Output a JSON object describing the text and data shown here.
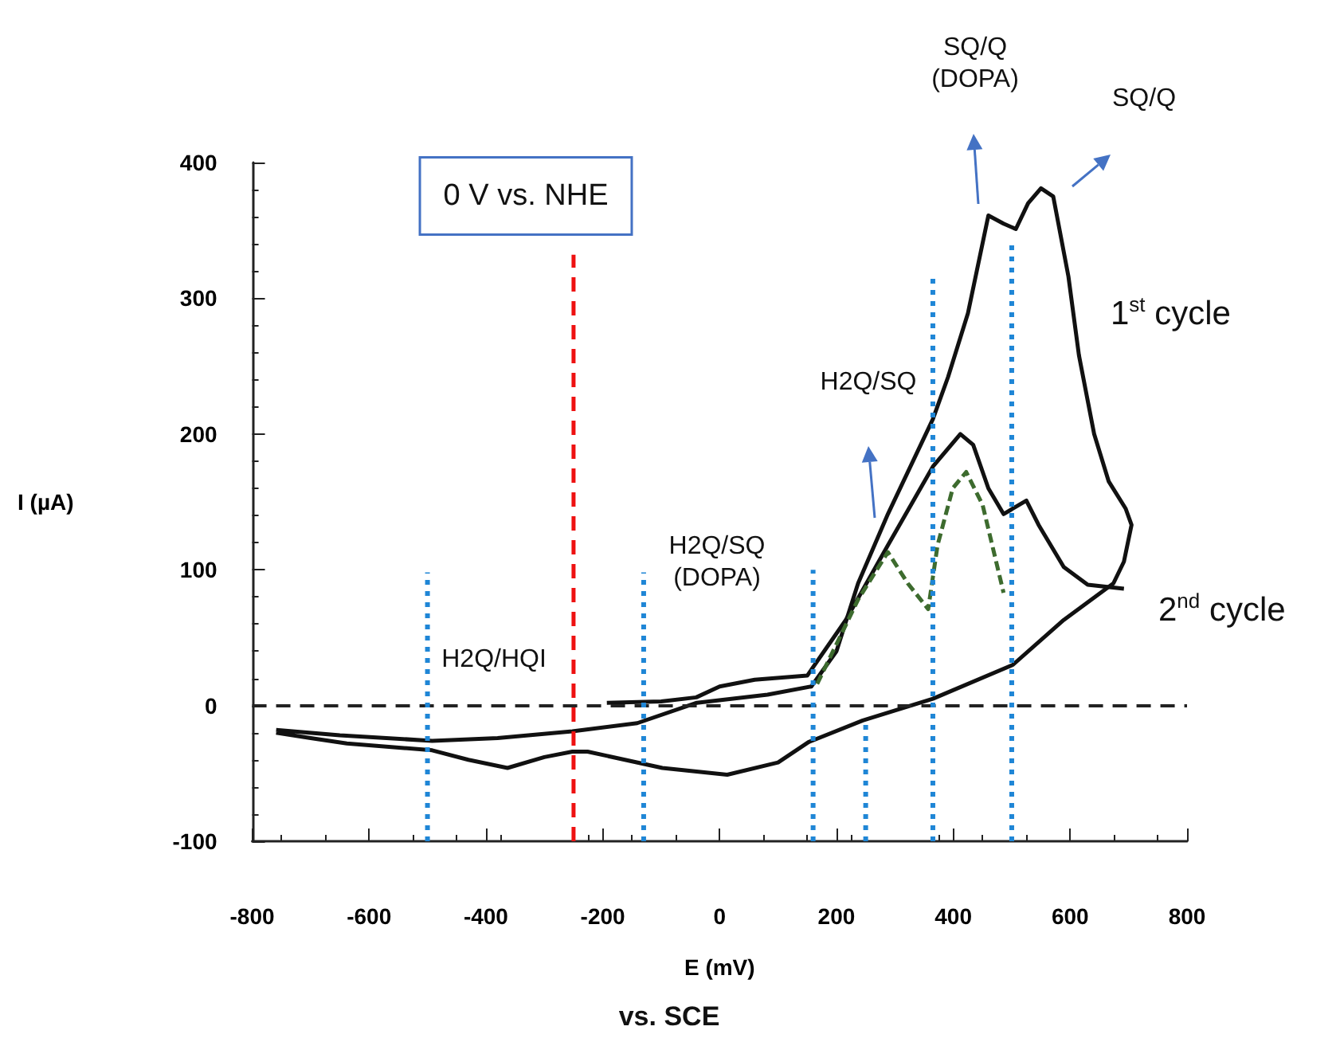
{
  "chart_data": {
    "type": "line",
    "xlabel": "E (mV)",
    "ylabel": "I (µA)",
    "xlim": [
      -800,
      800
    ],
    "ylim": [
      -100,
      400
    ],
    "xticks": [
      -800,
      -600,
      -400,
      -200,
      0,
      200,
      400,
      600,
      800
    ],
    "yticks": [
      -100,
      0,
      100,
      200,
      300,
      400
    ],
    "marker": "none",
    "series": [
      {
        "color": "#111111",
        "line_style": "solid",
        "x": [
          -759,
          -650,
          -492,
          -380,
          -252,
          -141,
          -39,
          82,
          157,
          200,
          237,
          288,
          365,
          391,
          425,
          460,
          486,
          507,
          528,
          550,
          571,
          597,
          615,
          641,
          666,
          695,
          705,
          692,
          674,
          589,
          502,
          365,
          245,
          152,
          100,
          13,
          -98,
          -226,
          -252,
          -300,
          -363,
          -430,
          -492,
          -638,
          -700,
          -759
        ],
        "values": [
          -18,
          -22,
          -26,
          -24,
          -19,
          -13,
          2,
          8,
          14,
          40,
          90,
          141,
          211,
          242,
          289,
          361,
          355,
          351,
          370,
          381,
          375,
          316,
          258,
          200,
          165,
          145,
          133,
          106,
          90,
          63,
          30,
          5,
          -11,
          -27,
          -42,
          -51,
          -46,
          -34,
          -34,
          -38,
          -46,
          -40,
          -33,
          -28,
          -24,
          -20
        ]
      },
      {
        "color": "#111111",
        "line_style": "solid",
        "x": [
          -193,
          -100,
          -40,
          0,
          60,
          150,
          216,
          288,
          365,
          412,
          434,
          460,
          486,
          525,
          546,
          589,
          630,
          692
        ],
        "values": [
          2,
          3,
          6,
          14,
          19,
          22,
          63,
          118,
          176,
          200,
          192,
          160,
          141,
          151,
          133,
          102,
          89,
          86
        ]
      },
      {
        "color": "#3d6b2e",
        "line_style": "dashed",
        "x": [
          167,
          237,
          288,
          322,
          357,
          373,
          399,
          422,
          450,
          486
        ],
        "values": [
          16,
          78,
          113,
          90,
          71,
          118,
          160,
          172,
          148,
          83
        ]
      },
      {
        "color": "#ee1111",
        "line_style": "dashed",
        "x": [
          -250,
          -250
        ],
        "values": [
          -100,
          332
        ]
      },
      {
        "color": "#1f86d6",
        "line_style": "dotted",
        "x": [
          -500,
          -500
        ],
        "values": [
          -100,
          98
        ]
      },
      {
        "color": "#1f86d6",
        "line_style": "dotted",
        "x": [
          -130,
          -130
        ],
        "values": [
          -100,
          98
        ]
      },
      {
        "color": "#1f86d6",
        "line_style": "dotted",
        "x": [
          160,
          160
        ],
        "values": [
          -100,
          100
        ]
      },
      {
        "color": "#1f86d6",
        "line_style": "dotted",
        "x": [
          250,
          250
        ],
        "values": [
          -100,
          -11
        ]
      },
      {
        "color": "#1f86d6",
        "line_style": "dotted",
        "x": [
          365,
          365
        ],
        "values": [
          -100,
          317
        ]
      },
      {
        "color": "#1f86d6",
        "line_style": "dotted",
        "x": [
          500,
          500
        ],
        "values": [
          -100,
          341
        ]
      }
    ],
    "ref_lines": [
      {
        "axis": "y",
        "value": 0,
        "color": "#222222",
        "line_style": "dashed"
      }
    ],
    "annotations": [
      "0 V vs. NHE",
      "H2Q/HQI",
      "H2Q/SQ\n(DOPA)",
      "H2Q/SQ",
      "SQ/Q\n(DOPA)",
      "SQ/Q",
      "1$^{st}$ cycle",
      "2$^{nd}$ cycle",
      "vs. SCE"
    ]
  }
}
